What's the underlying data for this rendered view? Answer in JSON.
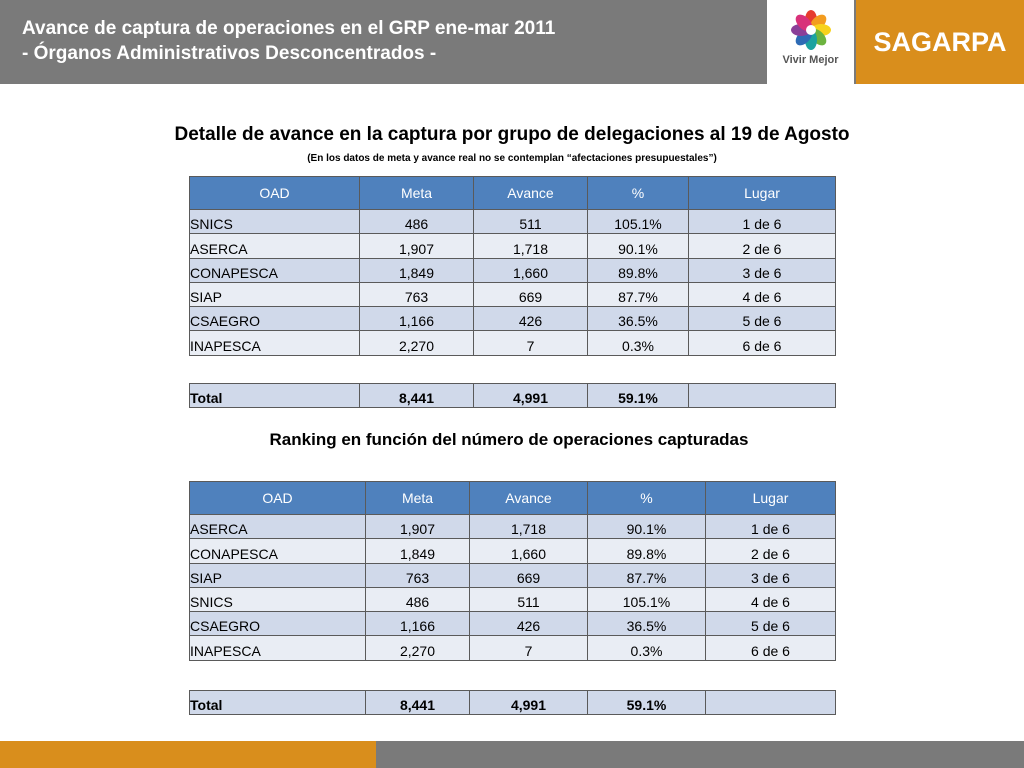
{
  "header": {
    "title_line1": "Avance de captura de operaciones  en el GRP ene-mar 2011",
    "title_line2": "- Órganos Administrativos Desconcentrados -",
    "logo_vivir_text": "Vivir Mejor",
    "logo_sagarpa_text": "SAGARPA"
  },
  "section1": {
    "title": "Detalle de avance en la captura por grupo de delegaciones al 19 de Agosto",
    "subtitle": "(En los datos de meta y avance real no se contemplan “afectaciones presupuestales”)",
    "columns": [
      "OAD",
      "Meta",
      "Avance",
      "%",
      "Lugar"
    ],
    "rows": [
      [
        "SNICS",
        "486",
        "511",
        "105.1%",
        "1 de 6"
      ],
      [
        "ASERCA",
        "1,907",
        "1,718",
        "90.1%",
        "2 de 6"
      ],
      [
        "CONAPESCA",
        "1,849",
        "1,660",
        "89.8%",
        "3 de 6"
      ],
      [
        "SIAP",
        "763",
        "669",
        "87.7%",
        "4 de 6"
      ],
      [
        "CSAEGRO",
        "1,166",
        "426",
        "36.5%",
        "5 de 6"
      ],
      [
        "INAPESCA",
        "2,270",
        "7",
        "0.3%",
        "6 de 6"
      ]
    ],
    "total": [
      "Total",
      "8,441",
      "4,991",
      "59.1%",
      ""
    ]
  },
  "section2": {
    "title": "Ranking en función del número de operaciones capturadas",
    "columns": [
      "OAD",
      "Meta",
      "Avance",
      "%",
      "Lugar"
    ],
    "rows": [
      [
        "ASERCA",
        "1,907",
        "1,718",
        "90.1%",
        "1 de 6"
      ],
      [
        "CONAPESCA",
        "1,849",
        "1,660",
        "89.8%",
        "2 de 6"
      ],
      [
        "SIAP",
        "763",
        "669",
        "87.7%",
        "3 de 6"
      ],
      [
        "SNICS",
        "486",
        "511",
        "105.1%",
        "4 de 6"
      ],
      [
        "CSAEGRO",
        "1,166",
        "426",
        "36.5%",
        "5 de 6"
      ],
      [
        "INAPESCA",
        "2,270",
        "7",
        "0.3%",
        "6 de 6"
      ]
    ],
    "total": [
      "Total",
      "8,441",
      "4,991",
      "59.1%",
      ""
    ]
  },
  "colors": {
    "header_gray": "#7a7a7a",
    "brand_orange": "#d98e1c",
    "table_header_blue": "#4f81bd",
    "row_band_dark": "#d0d9ea",
    "row_band_light": "#e9edf4"
  }
}
